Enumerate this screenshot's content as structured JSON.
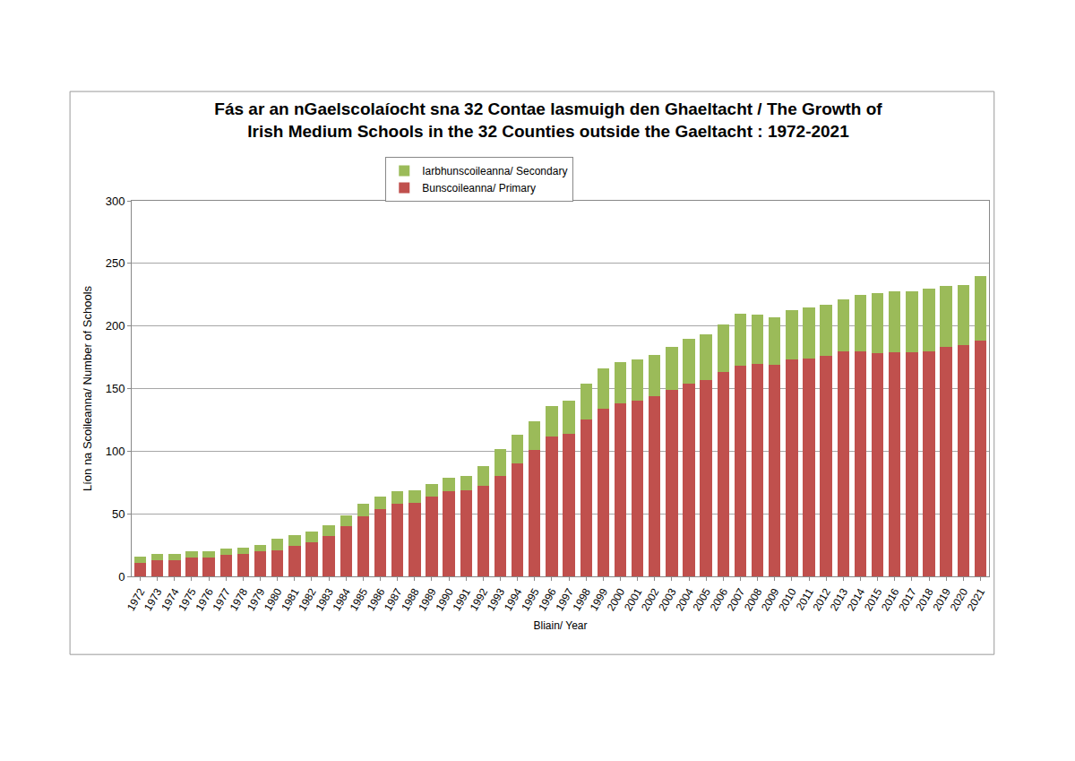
{
  "chart_data": {
    "type": "bar",
    "title": [
      "Fás ar an nGaelscolaíocht sna 32 Contae lasmuigh den Ghaeltacht / The Growth of",
      "Irish Medium Schools in the 32 Counties outside the Gaeltacht : 1972-2021"
    ],
    "x_label": "Bliain/ Year",
    "y_label": "Líon na Scoileanna/ Number of Schools",
    "categories": [
      "1972",
      "1973",
      "1974",
      "1975",
      "1976",
      "1977",
      "1978",
      "1979",
      "1980",
      "1981",
      "1982",
      "1983",
      "1984",
      "1985",
      "1986",
      "1987",
      "1988",
      "1989",
      "1990",
      "1991",
      "1992",
      "1993",
      "1994",
      "1995",
      "1996",
      "1997",
      "1998",
      "1999",
      "2000",
      "2001",
      "2002",
      "2003",
      "2004",
      "2005",
      "2006",
      "2007",
      "2008",
      "2009",
      "2010",
      "2011",
      "2012",
      "2013",
      "2014",
      "2015",
      "2016",
      "2017",
      "2018",
      "2019",
      "2020",
      "2021"
    ],
    "series": [
      {
        "name": "Bunscoileanna/ Primary",
        "color": "#c0504d",
        "values": [
          11,
          13,
          13,
          15,
          15,
          17,
          18,
          20,
          21,
          24,
          27,
          32,
          40,
          48,
          54,
          58,
          59,
          64,
          68,
          69,
          72,
          80,
          90,
          101,
          112,
          114,
          125,
          134,
          138,
          140,
          144,
          149,
          154,
          157,
          163,
          168,
          170,
          169,
          173,
          174,
          176,
          180,
          180,
          178,
          179,
          179,
          180,
          183,
          185,
          188
        ]
      },
      {
        "name": "Iarbhunscoileanna/ Secondary",
        "color": "#9bbb59",
        "values": [
          5,
          5,
          5,
          5,
          5,
          5,
          5,
          5,
          9,
          9,
          9,
          9,
          9,
          10,
          10,
          10,
          10,
          10,
          11,
          11,
          16,
          22,
          23,
          23,
          24,
          26,
          29,
          32,
          33,
          33,
          33,
          34,
          36,
          36,
          38,
          42,
          39,
          38,
          40,
          41,
          41,
          41,
          45,
          48,
          49,
          49,
          50,
          49,
          48,
          52
        ]
      }
    ],
    "stacked": true,
    "ylim": [
      0,
      300
    ],
    "yticks": [
      0,
      50,
      100,
      150,
      200,
      250,
      300
    ],
    "grid": true,
    "legend": "top"
  }
}
